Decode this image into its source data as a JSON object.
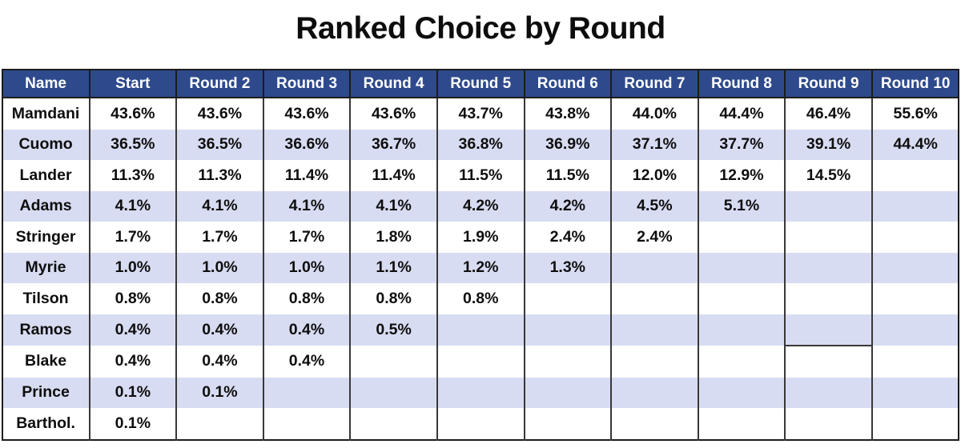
{
  "title": "Ranked Choice by Round",
  "colors": {
    "header_bg": "#2e4a8c",
    "header_text": "#ffffff",
    "row_alt_bg": "#d8dcf2",
    "row_bg": "#ffffff",
    "grid_line": "#383838",
    "outer_border": "#1c1c1c",
    "text": "#0e0e0e"
  },
  "table": {
    "columns": [
      "Name",
      "Start",
      "Round 2",
      "Round 3",
      "Round 4",
      "Round 5",
      "Round 6",
      "Round 7",
      "Round 8",
      "Round 9",
      "Round 10"
    ],
    "rows": [
      {
        "name": "Mamdani",
        "values": [
          "43.6%",
          "43.6%",
          "43.6%",
          "43.6%",
          "43.7%",
          "43.8%",
          "44.0%",
          "44.4%",
          "46.4%",
          "55.6%"
        ]
      },
      {
        "name": "Cuomo",
        "values": [
          "36.5%",
          "36.5%",
          "36.6%",
          "36.7%",
          "36.8%",
          "36.9%",
          "37.1%",
          "37.7%",
          "39.1%",
          "44.4%"
        ]
      },
      {
        "name": "Lander",
        "values": [
          "11.3%",
          "11.3%",
          "11.4%",
          "11.4%",
          "11.5%",
          "11.5%",
          "12.0%",
          "12.9%",
          "14.5%",
          ""
        ]
      },
      {
        "name": "Adams",
        "values": [
          "4.1%",
          "4.1%",
          "4.1%",
          "4.1%",
          "4.2%",
          "4.2%",
          "4.5%",
          "5.1%",
          "",
          ""
        ]
      },
      {
        "name": "Stringer",
        "values": [
          "1.7%",
          "1.7%",
          "1.7%",
          "1.8%",
          "1.9%",
          "2.4%",
          "2.4%",
          "",
          "",
          ""
        ]
      },
      {
        "name": "Myrie",
        "values": [
          "1.0%",
          "1.0%",
          "1.0%",
          "1.1%",
          "1.2%",
          "1.3%",
          "",
          "",
          "",
          ""
        ]
      },
      {
        "name": "Tilson",
        "values": [
          "0.8%",
          "0.8%",
          "0.8%",
          "0.8%",
          "0.8%",
          "",
          "",
          "",
          "",
          ""
        ]
      },
      {
        "name": "Ramos",
        "values": [
          "0.4%",
          "0.4%",
          "0.4%",
          "0.5%",
          "",
          "",
          "",
          "",
          "",
          ""
        ]
      },
      {
        "name": "Blake",
        "values": [
          "0.4%",
          "0.4%",
          "0.4%",
          "",
          "",
          "",
          "",
          "",
          "",
          ""
        ]
      },
      {
        "name": "Prince",
        "values": [
          "0.1%",
          "0.1%",
          "",
          "",
          "",
          "",
          "",
          "",
          "",
          ""
        ]
      },
      {
        "name": "Barthol.",
        "values": [
          "0.1%",
          "",
          "",
          "",
          "",
          "",
          "",
          "",
          "",
          ""
        ]
      }
    ],
    "quirk_segment": {
      "row_index": 7,
      "col_index": 9
    }
  },
  "chart_data": {
    "type": "table",
    "title": "Ranked Choice by Round",
    "categories": [
      "Start",
      "Round 2",
      "Round 3",
      "Round 4",
      "Round 5",
      "Round 6",
      "Round 7",
      "Round 8",
      "Round 9",
      "Round 10"
    ],
    "series": [
      {
        "name": "Mamdani",
        "values": [
          43.6,
          43.6,
          43.6,
          43.6,
          43.7,
          43.8,
          44.0,
          44.4,
          46.4,
          55.6
        ]
      },
      {
        "name": "Cuomo",
        "values": [
          36.5,
          36.5,
          36.6,
          36.7,
          36.8,
          36.9,
          37.1,
          37.7,
          39.1,
          44.4
        ]
      },
      {
        "name": "Lander",
        "values": [
          11.3,
          11.3,
          11.4,
          11.4,
          11.5,
          11.5,
          12.0,
          12.9,
          14.5,
          null
        ]
      },
      {
        "name": "Adams",
        "values": [
          4.1,
          4.1,
          4.1,
          4.1,
          4.2,
          4.2,
          4.5,
          5.1,
          null,
          null
        ]
      },
      {
        "name": "Stringer",
        "values": [
          1.7,
          1.7,
          1.7,
          1.8,
          1.9,
          2.4,
          2.4,
          null,
          null,
          null
        ]
      },
      {
        "name": "Myrie",
        "values": [
          1.0,
          1.0,
          1.0,
          1.1,
          1.2,
          1.3,
          null,
          null,
          null,
          null
        ]
      },
      {
        "name": "Tilson",
        "values": [
          0.8,
          0.8,
          0.8,
          0.8,
          0.8,
          null,
          null,
          null,
          null,
          null
        ]
      },
      {
        "name": "Ramos",
        "values": [
          0.4,
          0.4,
          0.4,
          0.5,
          null,
          null,
          null,
          null,
          null,
          null
        ]
      },
      {
        "name": "Blake",
        "values": [
          0.4,
          0.4,
          0.4,
          null,
          null,
          null,
          null,
          null,
          null,
          null
        ]
      },
      {
        "name": "Prince",
        "values": [
          0.1,
          0.1,
          null,
          null,
          null,
          null,
          null,
          null,
          null,
          null
        ]
      },
      {
        "name": "Barthol.",
        "values": [
          0.1,
          null,
          null,
          null,
          null,
          null,
          null,
          null,
          null,
          null
        ]
      }
    ],
    "units": "percent"
  }
}
